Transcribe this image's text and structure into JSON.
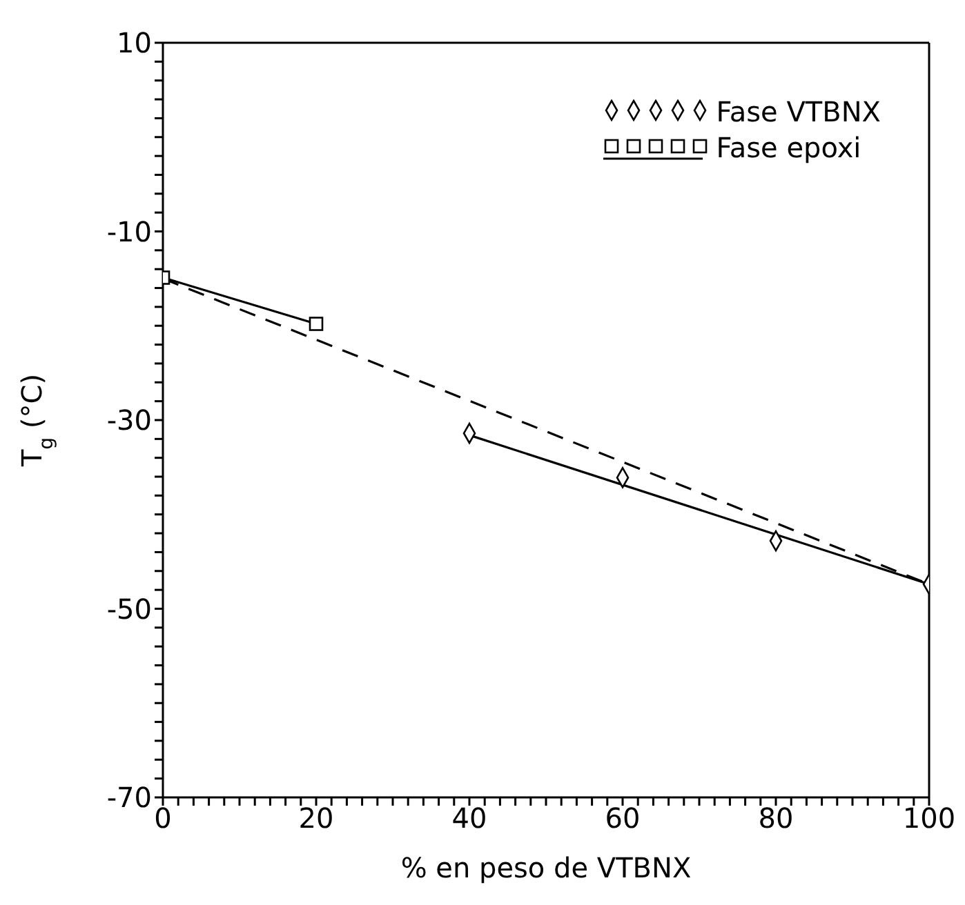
{
  "chart_data": {
    "type": "line",
    "xlabel": "% en peso de VTBNX",
    "ylabel": "T$_{g}$ (°C)",
    "xlim": [
      0,
      100
    ],
    "ylim": [
      -70,
      10
    ],
    "xticks": [
      0,
      {
        "value": 2,
        "label": null
      },
      {
        "value": 4,
        "label": null
      },
      {
        "value": 6,
        "label": null
      },
      {
        "value": 8,
        "label": null
      },
      {
        "value": 10,
        "label": null
      },
      {
        "value": 12,
        "label": null
      },
      {
        "value": 14,
        "label": null
      },
      {
        "value": 16,
        "label": null
      },
      {
        "value": 18,
        "label": null
      },
      20,
      {
        "value": 22,
        "label": null
      },
      {
        "value": 24,
        "label": null
      },
      {
        "value": 26,
        "label": null
      },
      {
        "value": 28,
        "label": null
      },
      {
        "value": 30,
        "label": null
      },
      {
        "value": 32,
        "label": null
      },
      {
        "value": 34,
        "label": null
      },
      {
        "value": 36,
        "label": null
      },
      {
        "value": 38,
        "label": null
      },
      40,
      {
        "value": 42,
        "label": null
      },
      {
        "value": 44,
        "label": null
      },
      {
        "value": 46,
        "label": null
      },
      {
        "value": 48,
        "label": null
      },
      {
        "value": 50,
        "label": null
      },
      {
        "value": 52,
        "label": null
      },
      {
        "value": 54,
        "label": null
      },
      {
        "value": 56,
        "label": null
      },
      {
        "value": 58,
        "label": null
      },
      60,
      {
        "value": 62,
        "label": null
      },
      {
        "value": 64,
        "label": null
      },
      {
        "value": 66,
        "label": null
      },
      {
        "value": 68,
        "label": null
      },
      {
        "value": 70,
        "label": null
      },
      {
        "value": 72,
        "label": null
      },
      {
        "value": 74,
        "label": null
      },
      {
        "value": 76,
        "label": null
      },
      {
        "value": 78,
        "label": null
      },
      80,
      {
        "value": 82,
        "label": null
      },
      {
        "value": 84,
        "label": null
      },
      {
        "value": 86,
        "label": null
      },
      {
        "value": 88,
        "label": null
      },
      {
        "value": 90,
        "label": null
      },
      {
        "value": 92,
        "label": null
      },
      {
        "value": 94,
        "label": null
      },
      {
        "value": 96,
        "label": null
      },
      {
        "value": 98,
        "label": null
      },
      100
    ],
    "yticks": [
      -70,
      {
        "value": -68,
        "label": null
      },
      {
        "value": -66,
        "label": null
      },
      {
        "value": -64,
        "label": null
      },
      {
        "value": -62,
        "label": null
      },
      {
        "value": -60,
        "label": null
      },
      {
        "value": -58,
        "label": null
      },
      {
        "value": -56,
        "label": null
      },
      {
        "value": -54,
        "label": null
      },
      {
        "value": -52,
        "label": null
      },
      -50,
      {
        "value": -48,
        "label": null
      },
      {
        "value": -46,
        "label": null
      },
      {
        "value": -44,
        "label": null
      },
      {
        "value": -42,
        "label": null
      },
      {
        "value": -40,
        "label": null
      },
      {
        "value": -38,
        "label": null
      },
      {
        "value": -36,
        "label": null
      },
      {
        "value": -34,
        "label": null
      },
      {
        "value": -32,
        "label": null
      },
      -30,
      {
        "value": -28,
        "label": null
      },
      {
        "value": -26,
        "label": null
      },
      {
        "value": -24,
        "label": null
      },
      {
        "value": -22,
        "label": null
      },
      {
        "value": -20,
        "label": null
      },
      {
        "value": -18,
        "label": null
      },
      {
        "value": -16,
        "label": null
      },
      {
        "value": -14,
        "label": null
      },
      {
        "value": -12,
        "label": null
      },
      -10,
      {
        "value": -8,
        "label": null
      },
      {
        "value": -6,
        "label": null
      },
      {
        "value": -4,
        "label": null
      },
      {
        "value": -2,
        "label": null
      },
      {
        "value": 0,
        "label": null
      },
      {
        "value": 2,
        "label": null
      },
      {
        "value": 4,
        "label": null
      },
      {
        "value": 6,
        "label": null
      },
      {
        "value": 8,
        "label": null
      },
      10
    ],
    "legend": "top right",
    "grid": false,
    "series": [
      {
        "name": "Fase VTBNX",
        "type": "scatter",
        "color": "#000000",
        "marker": "diamond",
        "x": [
          40,
          60,
          80,
          100
        ],
        "values": [
          -31.4,
          -36.1,
          -42.8,
          -47.4
        ]
      },
      {
        "name": "Fase epoxi",
        "color": "#000000",
        "marker": "square",
        "line_style": "solid",
        "x": [
          0,
          20
        ],
        "values": [
          -14.9,
          -19.8
        ]
      },
      {
        "color": "#000000",
        "marker": "none",
        "line_style": "solid",
        "x": [
          40,
          100
        ],
        "values": [
          -31.6,
          -47.4
        ]
      },
      {
        "color": "#000000",
        "marker": "none",
        "line_style": "dashed",
        "x": [
          0,
          100
        ],
        "values": [
          -15,
          -47.4
        ]
      }
    ]
  }
}
